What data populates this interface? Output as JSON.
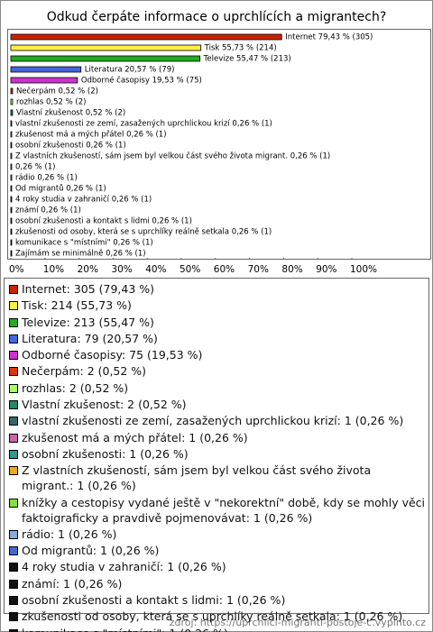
{
  "chart_data": {
    "type": "barh",
    "title": "Odkud čerpáte informace o uprchlících a migrantech?",
    "categories": [
      "Internet: 305 (79,43 %)",
      "Tisk: 214 (55,73 %)",
      "Televize: 213 (55,47 %)",
      "Literatura: 79 (20,57 %)",
      "Odborné časopisy: 75 (19,53 %)",
      "Nečerpám: 2 (0,52 %)",
      "rozhlas: 2 (0,52 %)",
      "Vlastní zkušenost: 2 (0,52 %)",
      "vlastní zkušenosti ze zemí, zasažených uprchlickou krizí: 1 (0,26 %)",
      "zkušenost má a mých přátel: 1 (0,26 %)",
      "osobní zkušenosti: 1 (0,26 %)",
      "Z vlastních zkušeností, sám jsem byl velkou část svého života migrant.: 1 (0,26 %)",
      "knížky a cestopisy vydané ještě v \"nekorektní\" době, kdy se mohly věci faktoigraficky a pravdivě pojmenovávat: 1 (0,26 %)",
      "rádio: 1 (0,26 %)",
      "Od migrantů: 1 (0,26 %)",
      "4 roky studia v zahraničí: 1 (0,26 %)",
      "známí: 1 (0,26 %)",
      "osobní zkušenosti a kontakt s lidmi: 1 (0,26 %)",
      "zkušenosti od osoby, která se s uprchlíky reálně setkala: 1 (0,26 %)",
      "komunikace s \"místními\": 1 (0,26 %)",
      "Zajímám se minimálně: 1 (0,26 %)"
    ],
    "values": [
      79.43,
      55.73,
      55.47,
      20.57,
      19.53,
      0.52,
      0.52,
      0.52,
      0.26,
      0.26,
      0.26,
      0.26,
      0.26,
      0.26,
      0.26,
      0.26,
      0.26,
      0.26,
      0.26,
      0.26,
      0.26
    ],
    "value_labels": [
      "Internet 79,43 % (305)",
      "Tisk 55,73 % (214)",
      "Televize 55,47 % (213)",
      "Literatura 20,57 % (79)",
      "Odborné časopisy 19,53 % (75)",
      "Nečerpám 0,52 % (2)",
      "rozhlas 0,52 % (2)",
      "Vlastní zkušenost 0,52 % (2)",
      "vlastní zkušenosti ze zemí, zasažených uprchlickou krizí 0,26 % (1)",
      "zkušenost má a mých přátel 0,26 % (1)",
      "osobní zkušenosti 0,26 % (1)",
      "Z vlastních zkušeností, sám jsem byl velkou část svého života migrant. 0,26 % (1)",
      "0,26 % (1)",
      "rádio 0,26 % (1)",
      "Od migrantů 0,26 % (1)",
      "4 roky studia v zahraničí 0,26 % (1)",
      "známí 0,26 % (1)",
      "osobní zkušenosti a kontakt s lidmi 0,26 % (1)",
      "zkušenosti od osoby, která se s uprchlíky reálně setkala 0,26 % (1)",
      "komunikace s \"místními\" 0,26 % (1)",
      "Zajímám se minimálně 0,26 % (1)"
    ],
    "colors": [
      "#cc2200",
      "#ffee44",
      "#22aa22",
      "#4466dd",
      "#cc33cc",
      "#dd3311",
      "#aaff66",
      "#228866",
      "#336666",
      "#cc66aa",
      "#339988",
      "#eeaa22",
      "#88dd44",
      "#88aadd",
      "#4466cc",
      "#111111",
      "#111111",
      "#111111",
      "#111111",
      "#111111",
      "#111111"
    ],
    "xlim": [
      0,
      100
    ],
    "xticks": [
      {
        "value": 0,
        "label": "0%"
      },
      {
        "value": 10,
        "label": "10%"
      },
      {
        "value": 20,
        "label": "20%"
      },
      {
        "value": 30,
        "label": "30%"
      },
      {
        "value": 40,
        "label": "40%"
      },
      {
        "value": 50,
        "label": "50%"
      },
      {
        "value": 60,
        "label": "60%"
      },
      {
        "value": 70,
        "label": "70%"
      },
      {
        "value": 80,
        "label": "80%"
      },
      {
        "value": 90,
        "label": "90%"
      },
      {
        "value": 100,
        "label": "100%"
      }
    ],
    "source": "zdroj: https://uprchlici-migranti-postoje-c.vyplnto.cz"
  }
}
